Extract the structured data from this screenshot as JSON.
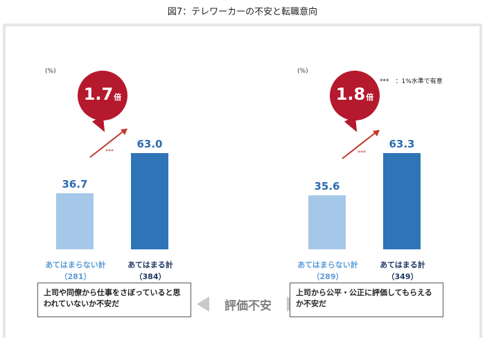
{
  "figure_title": "図7：テレワーカーの不安と転職意向",
  "center_label": "評価不安",
  "chart_data": [
    {
      "type": "bar",
      "unit_label": "(%)",
      "categories": [
        "あてはまらない計",
        "あてはまる計"
      ],
      "counts": [
        "（281）",
        "（384）"
      ],
      "values": [
        36.7,
        63.0
      ],
      "value_labels": [
        "36.7",
        "63.0"
      ],
      "ylim": [
        0,
        100
      ],
      "ratio": "1.7",
      "ratio_unit": "倍",
      "significance": "***",
      "description": "上司や同僚から仕事をさぼっていると思われていないか不安だ",
      "colors": [
        "#a6c8e8",
        "#2e74b7"
      ]
    },
    {
      "type": "bar",
      "unit_label": "(%)",
      "categories": [
        "あてはまらない計",
        "あてはまる計"
      ],
      "counts": [
        "（289）",
        "（349）"
      ],
      "values": [
        35.6,
        63.3
      ],
      "value_labels": [
        "35.6",
        "63.3"
      ],
      "ylim": [
        0,
        100
      ],
      "ratio": "1.8",
      "ratio_unit": "倍",
      "significance": "***",
      "significance_note": "***　：1%水準で有意",
      "description": "上司から公平・公正に評価してもらえるか不安だ",
      "colors": [
        "#a6c8e8",
        "#2e74b7"
      ]
    }
  ]
}
